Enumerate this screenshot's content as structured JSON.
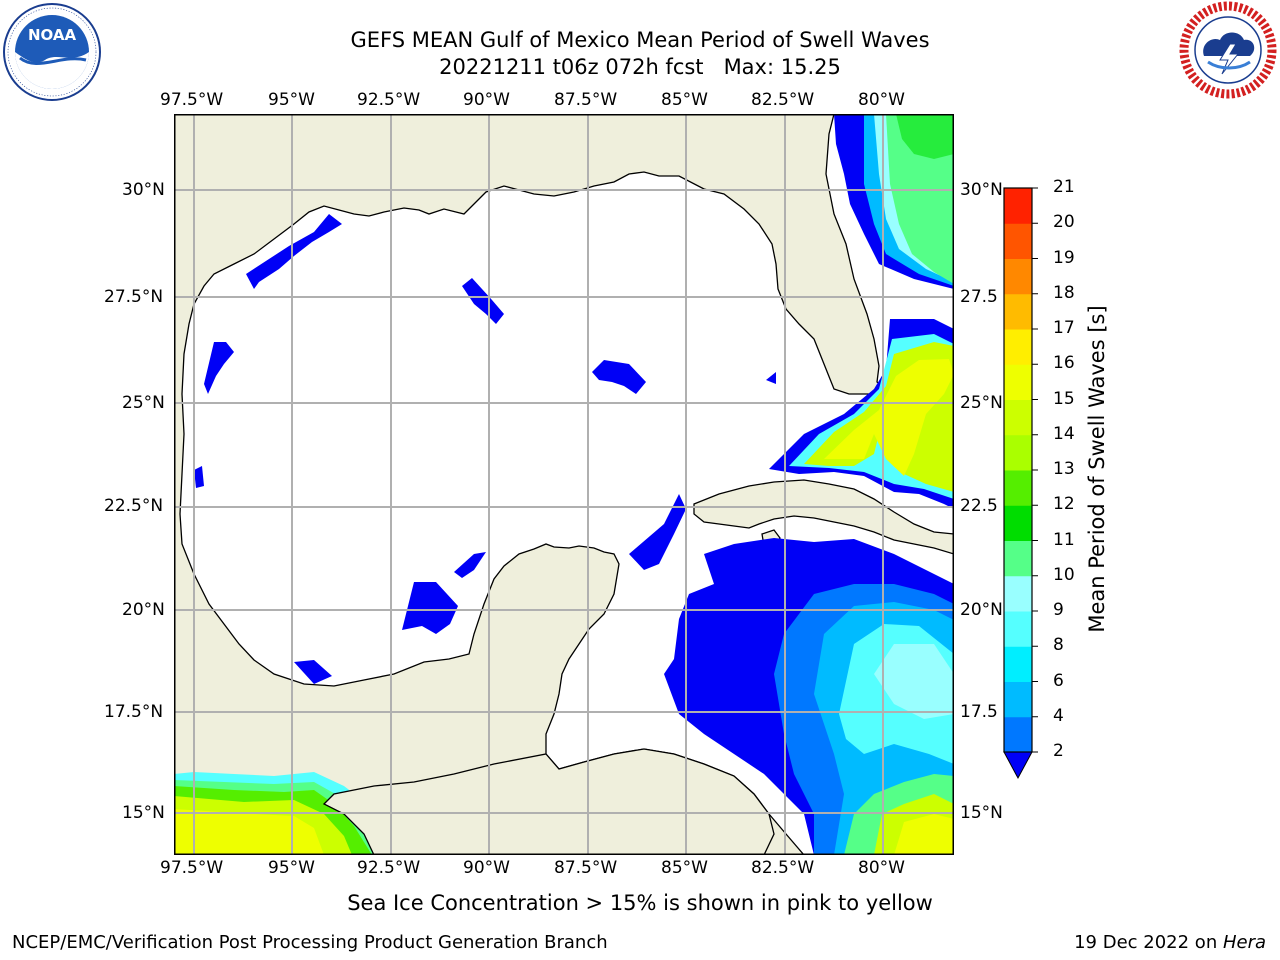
{
  "header": {
    "title_line1": "GEFS MEAN Gulf of Mexico Mean Period of Swell Waves",
    "title_line2": "20221211 t06z 072h fcst   Max: 15.25"
  },
  "logos": {
    "left": {
      "name": "noaa-logo",
      "text": "NOAA",
      "ring_text": "NATIONAL OCEANIC AND ATMOSPHERIC ADMINISTRATION · U.S. DEPARTMENT OF COMMERCE"
    },
    "right": {
      "name": "nws-logo",
      "ring_text": "NATIONAL WEATHER SERVICE"
    }
  },
  "map": {
    "longitude_ticks": [
      "97.5°W",
      "95°W",
      "92.5°W",
      "90°W",
      "87.5°W",
      "85°W",
      "82.5°W",
      "80°W"
    ],
    "latitude_ticks_left": [
      "30°N",
      "27.5°N",
      "25°N",
      "22.5°N",
      "20°N",
      "17.5°N",
      "15°N"
    ],
    "latitude_ticks_right": [
      "30°N",
      "27.5",
      "25°N",
      "22.5",
      "20°N",
      "17.5",
      "15°N"
    ],
    "land_color": "#efefdc",
    "grid_color": "#b0b0b0"
  },
  "colorbar": {
    "label": "Mean Period of Swell Waves [s]",
    "ticks": [
      "21",
      "20",
      "19",
      "18",
      "17",
      "16",
      "15",
      "14",
      "13",
      "12",
      "11",
      "10",
      "9",
      "8",
      "6",
      "4",
      "2"
    ],
    "colors": [
      "#0000f6",
      "#0078ff",
      "#00bbff",
      "#00eeff",
      "#55ffff",
      "#99ffff",
      "#55ff88",
      "#00dd00",
      "#55ee00",
      "#aaff00",
      "#ccff00",
      "#eeff00",
      "#ffee00",
      "#ffbb00",
      "#ff8800",
      "#ff5500",
      "#ff2200",
      "#ff0000"
    ]
  },
  "note": "Sea Ice Concentration > 15% is shown in pink to yellow",
  "footer": {
    "left": "NCEP/EMC/Verification Post Processing Product Generation Branch",
    "right_prefix": "19 Dec 2022 on ",
    "right_italic": "Hera"
  }
}
